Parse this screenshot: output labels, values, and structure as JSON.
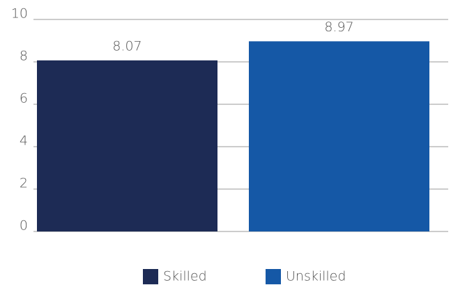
{
  "chart_data": {
    "type": "bar",
    "categories": [
      null
    ],
    "series": [
      {
        "name": "Skilled",
        "color": "#1d2b55",
        "values": [
          8.07
        ]
      },
      {
        "name": "Unskilled",
        "color": "#1558a6",
        "values": [
          8.97
        ]
      }
    ],
    "ylim": [
      0,
      10
    ],
    "yticks": [
      0,
      2,
      4,
      6,
      8,
      10
    ],
    "grid": true,
    "legend": "bottom"
  }
}
